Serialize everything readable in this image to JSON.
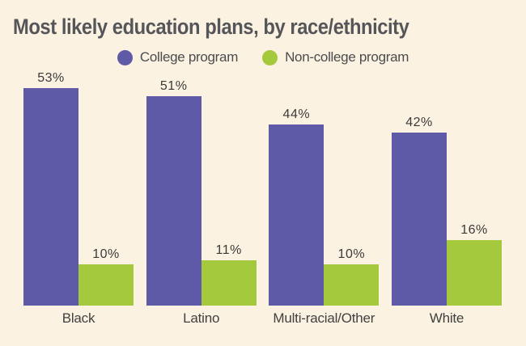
{
  "chart": {
    "title": "Most likely education plans, by race/ethnicity",
    "legend": [
      {
        "label": "College program",
        "color": "#5f5aa7"
      },
      {
        "label": "Non-college program",
        "color": "#a5c93c"
      }
    ]
  },
  "chart_data": {
    "type": "bar",
    "categories": [
      "Black",
      "Latino",
      "Multi-racial/Other",
      "White"
    ],
    "series": [
      {
        "name": "College program",
        "color": "#5f5aa7",
        "values": [
          53,
          51,
          44,
          42
        ]
      },
      {
        "name": "Non-college program",
        "color": "#a5c93c",
        "values": [
          10,
          11,
          10,
          16
        ]
      }
    ],
    "value_suffix": "%",
    "data_labels": true,
    "title": "Most likely education plans, by race/ethnicity",
    "xlabel": "",
    "ylabel": "",
    "ylim": [
      0,
      57
    ],
    "grid": false,
    "legend_position": "top",
    "background": "#fcf2e1"
  }
}
